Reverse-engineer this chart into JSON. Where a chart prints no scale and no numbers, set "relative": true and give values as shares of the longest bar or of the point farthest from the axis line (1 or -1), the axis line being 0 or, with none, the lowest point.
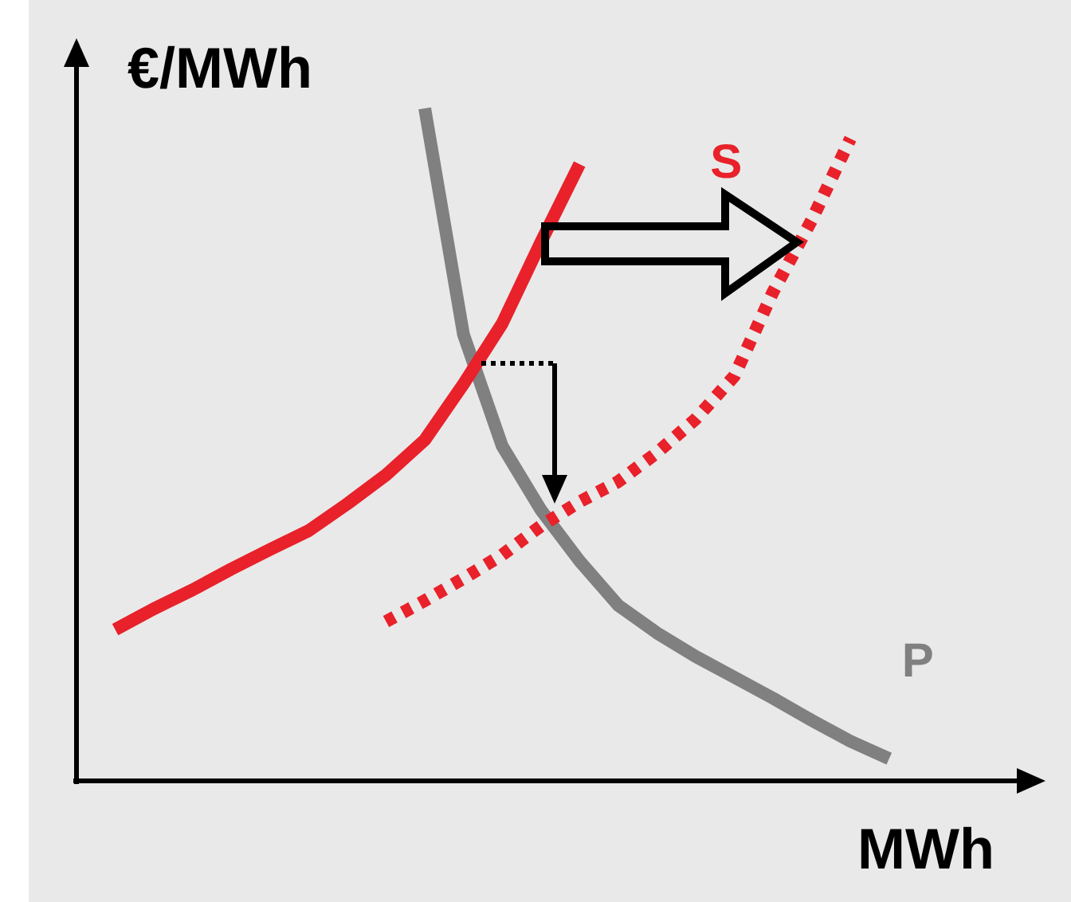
{
  "chart_data": {
    "type": "line",
    "relative": true,
    "xlabel": "MWh",
    "ylabel": "€/MWh",
    "legend": false,
    "marker": "none",
    "categories": [
      null,
      null,
      null,
      null,
      null,
      null,
      null,
      null,
      null,
      null,
      null,
      null,
      null,
      null,
      null,
      null,
      null,
      null,
      null,
      null,
      null,
      null,
      null,
      null,
      null,
      null
    ],
    "series": [
      {
        "color": "#e8212a",
        "line_style": "solid",
        "values": [
          null,
          0.225,
          0.256,
          0.284,
          0.315,
          0.344,
          0.372,
          0.412,
          0.455,
          0.507,
          0.59,
          0.68,
          0.801,
          0.917,
          null,
          null,
          null,
          null,
          null,
          null,
          null,
          null,
          null,
          null,
          null,
          null
        ]
      },
      {
        "name": "S",
        "color": "#e8212a",
        "line_style": "dotted",
        "values": [
          null,
          null,
          null,
          null,
          null,
          null,
          null,
          null,
          0.237,
          0.268,
          0.301,
          0.336,
          0.379,
          0.415,
          0.445,
          0.488,
          0.538,
          0.602,
          0.727,
          0.834,
          0.955,
          null,
          null,
          null,
          null,
          null
        ]
      },
      {
        "name": "P",
        "color": "#808080",
        "line_style": "solid",
        "values": [
          null,
          null,
          null,
          null,
          null,
          null,
          null,
          null,
          null,
          1,
          0.664,
          0.498,
          0.403,
          0.327,
          0.261,
          0.22,
          0.185,
          0.154,
          0.123,
          0.09,
          0.059,
          0.033,
          null,
          null,
          null,
          null
        ]
      }
    ]
  }
}
